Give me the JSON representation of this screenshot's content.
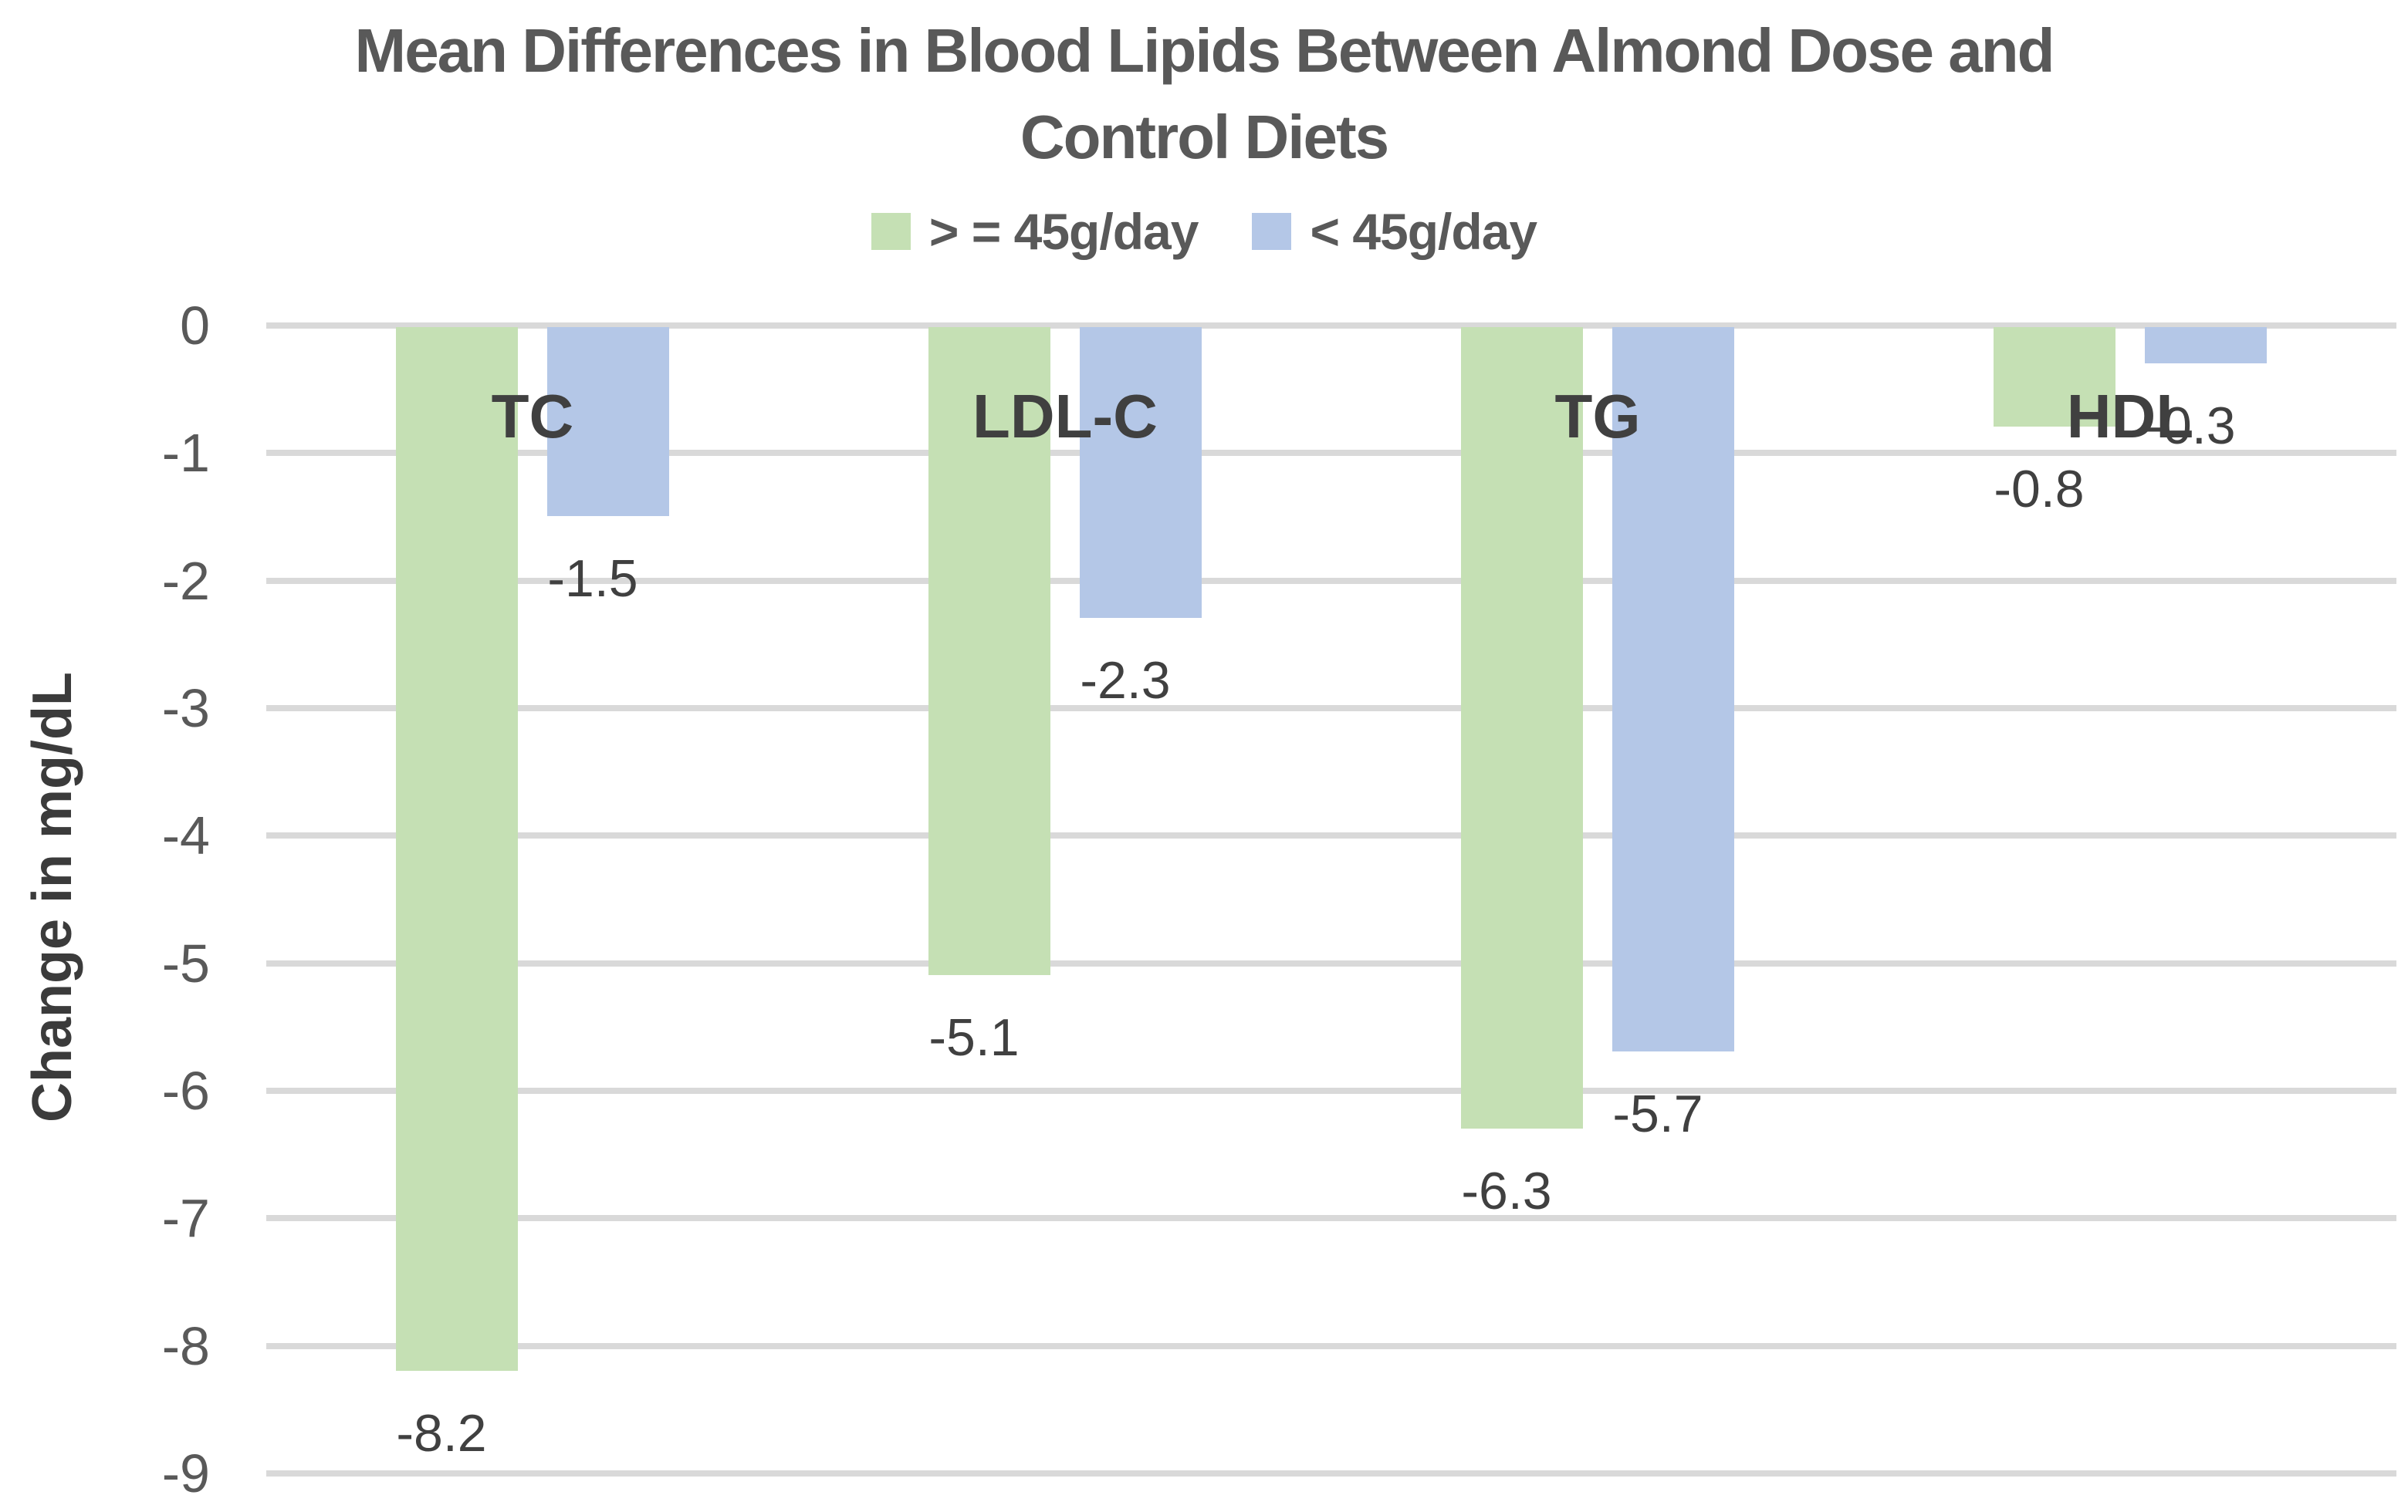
{
  "title": {
    "line1": "Mean Differences in Blood Lipids Between Almond Dose and",
    "line2": "Control Diets"
  },
  "legend": {
    "items": [
      {
        "label": "> = 45g/day",
        "color": "#C5E0B4"
      },
      {
        "label": "< 45g/day",
        "color": "#B4C7E7"
      }
    ]
  },
  "colors": {
    "series_green": "#C5E0B4",
    "series_blue": "#B4C7E7",
    "gridline": "#D9D9D9",
    "title_text": "#595959",
    "tick_text": "#595959",
    "label_text": "#404040"
  },
  "chart_data": {
    "type": "bar",
    "title": "Mean Differences in Blood Lipids Between Almond Dose and Control Diets",
    "categories": [
      "TC",
      "LDL-C",
      "TG",
      "HDL"
    ],
    "series": [
      {
        "name": "> = 45g/day",
        "color": "#C5E0B4",
        "values": [
          -8.2,
          -5.1,
          -6.3,
          -0.8
        ],
        "labels": [
          "-8.2",
          "-5.1",
          "-6.3",
          "-0.8"
        ]
      },
      {
        "name": "< 45g/day",
        "color": "#B4C7E7",
        "values": [
          -1.5,
          -2.3,
          -5.7,
          -0.3
        ],
        "labels": [
          "-1.5",
          "-2.3",
          "-5.7",
          "-0.3"
        ]
      }
    ],
    "xlabel": "",
    "ylabel": "Change in mg/dL",
    "ylim": [
      -9,
      0
    ],
    "yticks": [
      0,
      -1,
      -2,
      -3,
      -4,
      -5,
      -6,
      -7,
      -8,
      -9
    ],
    "ytick_labels": [
      "0",
      "-1",
      "-2",
      "-3",
      "-4",
      "-5",
      "-6",
      "-7",
      "-8",
      "-9"
    ],
    "grid": true,
    "legend_position": "top-center",
    "data_labels": true
  }
}
